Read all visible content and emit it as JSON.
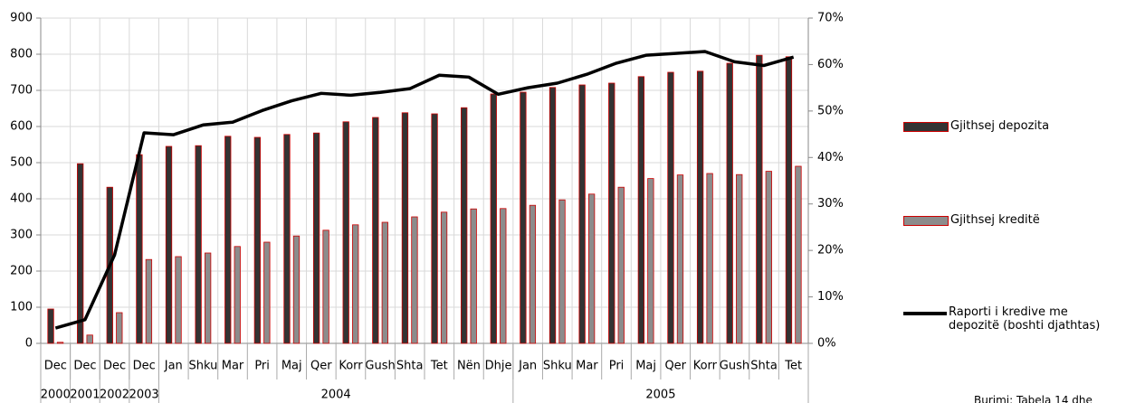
{
  "chart_data": {
    "type": "bar-line",
    "groups": [
      {
        "name": "2000",
        "categories": [
          "Dec"
        ]
      },
      {
        "name": "2001",
        "categories": [
          "Dec"
        ]
      },
      {
        "name": "2002",
        "categories": [
          "Dec"
        ]
      },
      {
        "name": "2003",
        "categories": [
          "Dec"
        ]
      },
      {
        "name": "2004",
        "categories": [
          "Jan",
          "Shku",
          "Mar",
          "Pri",
          "Maj",
          "Qer",
          "Korr",
          "Gush",
          "Shta",
          "Tet",
          "Nën",
          "Dhje"
        ]
      },
      {
        "name": "2005",
        "categories": [
          "Jan",
          "Shku",
          "Mar",
          "Pri",
          "Maj",
          "Qer",
          "Korr",
          "Gush",
          "Shta",
          "Tet"
        ]
      }
    ],
    "series": [
      {
        "name": "Gjithsej depozita",
        "kind": "bar",
        "color": "#333333",
        "edge": "#cc0000",
        "values": [
          95,
          497,
          432,
          522,
          545,
          547,
          573,
          570,
          578,
          582,
          613,
          625,
          638,
          635,
          652,
          690,
          695,
          708,
          715,
          720,
          738,
          750,
          753,
          775,
          797,
          793
        ]
      },
      {
        "name": "Gjithsej kreditë",
        "kind": "bar",
        "color": "#8c8c8c",
        "edge": "#cc0000",
        "values": [
          3,
          23,
          85,
          232,
          240,
          250,
          268,
          280,
          297,
          313,
          328,
          335,
          350,
          363,
          372,
          373,
          382,
          397,
          413,
          432,
          456,
          466,
          470,
          467,
          476,
          490
        ]
      },
      {
        "name": "Raporti i kredive me depozitë (boshti djathtas)",
        "kind": "line",
        "axis": "y2",
        "color": "#000000",
        "values": [
          3.3,
          5.1,
          19,
          45.3,
          44.9,
          47,
          47.6,
          50.1,
          52.2,
          53.8,
          53.4,
          54,
          54.8,
          57.7,
          57.3,
          53.6,
          55,
          56,
          57.9,
          60.3,
          62,
          62.4,
          62.8,
          60.6,
          59.8,
          61.6
        ]
      }
    ],
    "ylim": [
      0,
      900
    ],
    "yticks": [
      0,
      100,
      200,
      300,
      400,
      500,
      600,
      700,
      800,
      900
    ],
    "y2lim": [
      0,
      70
    ],
    "y2ticks": [
      {
        "value": 0,
        "label": "0%"
      },
      {
        "value": 10,
        "label": "10%"
      },
      {
        "value": 20,
        "label": "20%"
      },
      {
        "value": 30,
        "label": "30%"
      },
      {
        "value": 40,
        "label": "40%"
      },
      {
        "value": 50,
        "label": "50%"
      },
      {
        "value": 60,
        "label": "60%"
      },
      {
        "value": 70,
        "label": "70%"
      }
    ],
    "grid": true,
    "legend": "right",
    "source": "Burimi: Tabela 14 dhe"
  }
}
